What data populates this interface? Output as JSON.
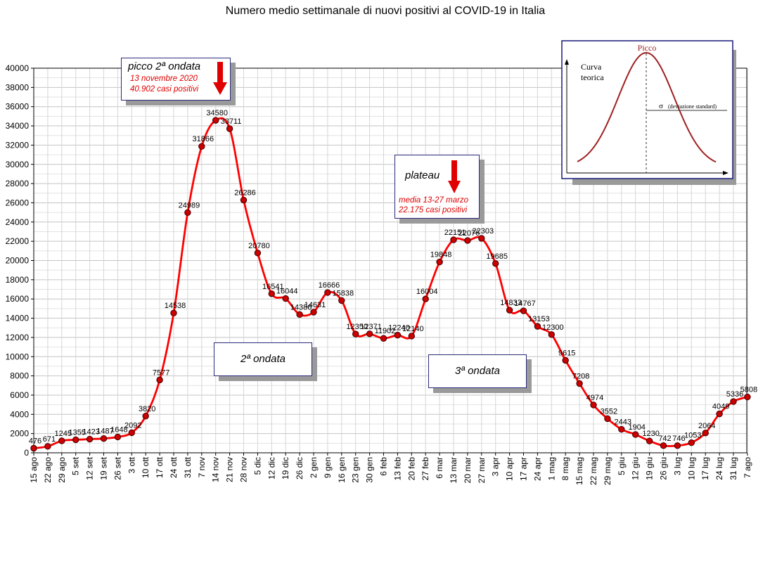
{
  "chart_data": {
    "type": "line",
    "title": "Numero medio settimanale di nuovi positivi al COVID-19 in Italia",
    "xlabel": "",
    "ylabel": "",
    "ylim": [
      0,
      40000
    ],
    "yticks": [
      0,
      2000,
      4000,
      6000,
      8000,
      10000,
      12000,
      14000,
      16000,
      18000,
      20000,
      22000,
      24000,
      26000,
      28000,
      30000,
      32000,
      34000,
      36000,
      38000,
      40000
    ],
    "grid": true,
    "line_color": "#ff0000",
    "marker_color": "#cc0000",
    "categories": [
      "15 ago",
      "22 ago",
      "29 ago",
      "5 set",
      "12 set",
      "19 set",
      "26 set",
      "3 ott",
      "10 ott",
      "17 ott",
      "24 ott",
      "31 ott",
      "7 nov",
      "14 nov",
      "21 nov",
      "28 nov",
      "5 dic",
      "12 dic",
      "19 dic",
      "26 dic",
      "2 gen",
      "9 gen",
      "16 gen",
      "23 gen",
      "30 gen",
      "6 feb",
      "13 feb",
      "20 feb",
      "27 feb",
      "6 mar",
      "13 mar",
      "20 mar",
      "27 mar",
      "3 apr",
      "10 apr",
      "17 apr",
      "24 apr",
      "1 mag",
      "8 mag",
      "15 mag",
      "22 mag",
      "29 mag",
      "5 giu",
      "12 giu",
      "19 giu",
      "26 giu",
      "3 lug",
      "10 lug",
      "17 lug",
      "24 lug",
      "31 lug",
      "7 ago"
    ],
    "values": [
      476,
      671,
      1245,
      1355,
      1423,
      1487,
      1648,
      2092,
      3820,
      7577,
      14538,
      24989,
      31866,
      34580,
      33711,
      26286,
      20780,
      16541,
      16044,
      14386,
      14631,
      16666,
      15838,
      12350,
      12371,
      11902,
      12240,
      12140,
      16004,
      19848,
      22151,
      22076,
      22303,
      19685,
      14833,
      14767,
      13153,
      12300,
      9615,
      7208,
      4974,
      3552,
      2443,
      1904,
      1230,
      742,
      746,
      1053,
      2064,
      4049,
      5336,
      5808
    ]
  },
  "annotations": {
    "peak_box": {
      "title": "picco 2ª ondata",
      "date": "13 novembre 2020",
      "value": "40.902 casi positivi"
    },
    "plateau_box": {
      "title": "plateau",
      "period": "media 13-27 marzo",
      "value": "22.175 casi positivi"
    },
    "wave2_label": "2ª ondata",
    "wave3_label": "3ª ondata"
  },
  "inset": {
    "peak_label": "Picco",
    "curve_label_line1": "Curva",
    "curve_label_line2": "teorica",
    "sigma_symbol": "σ",
    "sigma_label": "(deviazione standard)"
  }
}
